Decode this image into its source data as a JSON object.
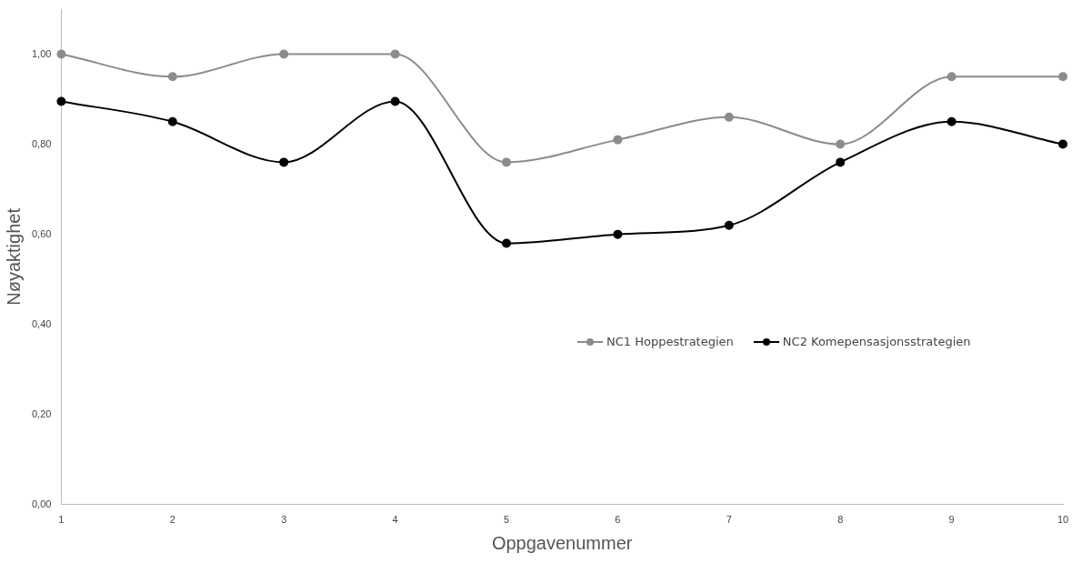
{
  "chart_data": {
    "type": "line",
    "xlabel": "Oppgavenummer",
    "ylabel": "Nøyaktighet",
    "categories": [
      "1",
      "2",
      "3",
      "4",
      "5",
      "6",
      "7",
      "8",
      "9",
      "10"
    ],
    "series": [
      {
        "name": "NC1 Hoppestrategien",
        "color": "#8c8c8c",
        "values": [
          1.0,
          0.95,
          1.0,
          1.0,
          0.76,
          0.81,
          0.86,
          0.8,
          0.95,
          0.95
        ]
      },
      {
        "name": "NC2 Komepensasjonsstrategien",
        "color": "#000000",
        "values": [
          0.895,
          0.85,
          0.76,
          0.895,
          0.58,
          0.6,
          0.62,
          0.76,
          0.85,
          0.8
        ]
      }
    ],
    "ylim": [
      0,
      1.1
    ],
    "yticks": [
      {
        "value": 0,
        "label": "0,00"
      },
      {
        "value": 0.2,
        "label": "0,20"
      },
      {
        "value": 0.4,
        "label": "0,40"
      },
      {
        "value": 0.6,
        "label": "0,60"
      },
      {
        "value": 0.8,
        "label": "0,80"
      },
      {
        "value": 1,
        "label": "1,00"
      }
    ],
    "grid": false,
    "legend": "right",
    "marker": "circle",
    "line_style": "solid"
  }
}
